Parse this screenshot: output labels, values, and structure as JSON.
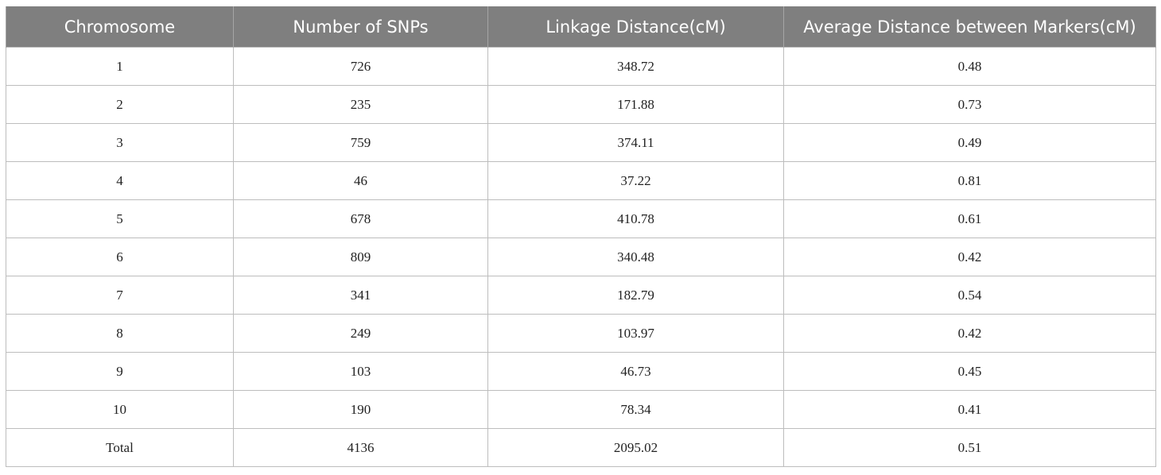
{
  "chart_data": {
    "type": "table",
    "columns": [
      "Chromosome",
      "Number of SNPs",
      "Linkage Distance(cM)",
      "Average Distance between Markers(cM)"
    ],
    "rows": [
      [
        "1",
        "726",
        "348.72",
        "0.48"
      ],
      [
        "2",
        "235",
        "171.88",
        "0.73"
      ],
      [
        "3",
        "759",
        "374.11",
        "0.49"
      ],
      [
        "4",
        "46",
        "37.22",
        "0.81"
      ],
      [
        "5",
        "678",
        "410.78",
        "0.61"
      ],
      [
        "6",
        "809",
        "340.48",
        "0.42"
      ],
      [
        "7",
        "341",
        "182.79",
        "0.54"
      ],
      [
        "8",
        "249",
        "103.97",
        "0.42"
      ],
      [
        "9",
        "103",
        "46.73",
        "0.45"
      ],
      [
        "10",
        "190",
        "78.34",
        "0.41"
      ],
      [
        "Total",
        "4136",
        "2095.02",
        "0.51"
      ]
    ]
  }
}
